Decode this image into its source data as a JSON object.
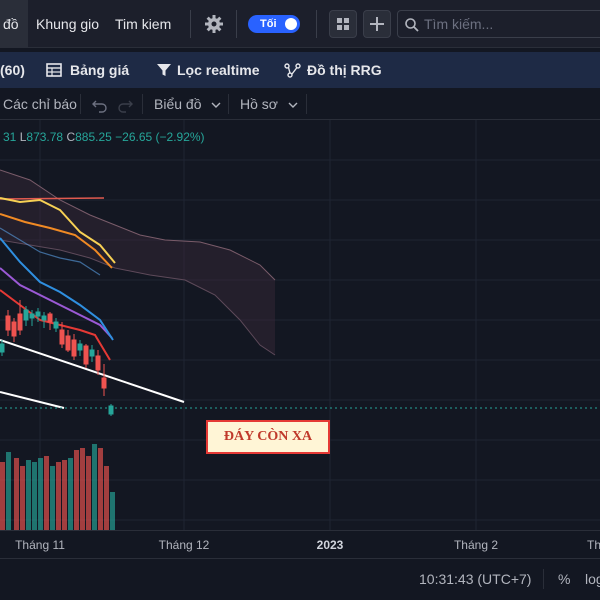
{
  "topbar": {
    "active_tab": "đồ",
    "khung_gio": "Khung gio",
    "tim_kiem": "Tim kiem",
    "theme_toggle": "Tối",
    "search_placeholder": "Tìm kiếm..."
  },
  "nav": {
    "symbol_fragment": "60)",
    "bang_gia": "Bảng giá",
    "loc_realtime": "Lọc realtime",
    "do_thi_rrg": "Đồ thị RRG"
  },
  "chart_toolbar": {
    "indicators": "Các chỉ báo",
    "chart_type": "Biểu đồ",
    "profile": "Hồ sơ"
  },
  "ohlc": {
    "prefix": "31",
    "low_key": "L",
    "low_value": "873.78",
    "close_key": "C",
    "close_value": "885.25",
    "change": "−26.65 (−2.92%)"
  },
  "annotation": "ĐÁY CÒN XA",
  "xaxis": {
    "ticks": [
      "Tháng 11",
      "Tháng 12",
      "2023",
      "Tháng 2",
      "Th"
    ]
  },
  "bottombar": {
    "time": "10:31:43 (UTC+7)",
    "percent": "%",
    "log": "log"
  },
  "colors": {
    "background": "#131722",
    "accent": "#2962ff",
    "up": "#26a69a",
    "down": "#ef5350"
  }
}
